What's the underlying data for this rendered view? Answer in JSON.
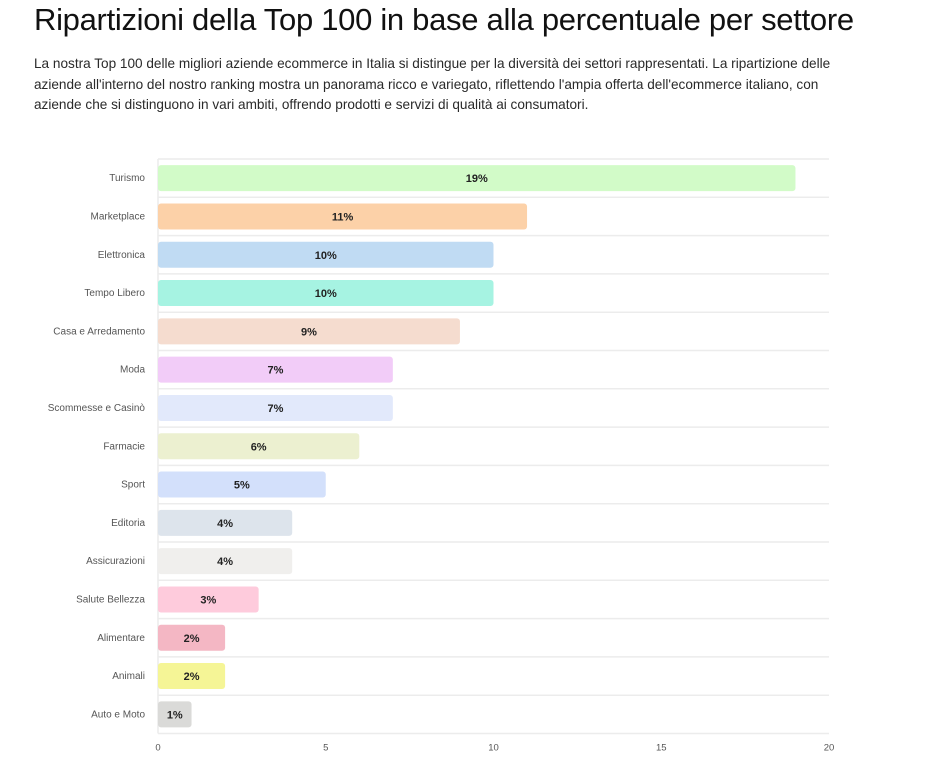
{
  "header": {
    "title": "Ripartizioni della Top 100 in base alla percentuale per settore",
    "description": "La nostra Top 100 delle migliori aziende ecommerce in Italia si distingue per la diversità dei settori rappresentati. La ripartizione delle aziende all'interno del nostro ranking mostra un panorama ricco e variegato, riflettendo l'ampia offerta dell'ecommerce italiano, con aziende che si distinguono in vari ambiti, offrendo prodotti e servizi di qualità ai consumatori."
  },
  "chart_data": {
    "type": "bar",
    "orientation": "horizontal",
    "title": "",
    "xlabel": "",
    "ylabel": "",
    "xlim": [
      0,
      20
    ],
    "xticks": [
      0,
      5,
      10,
      15,
      20
    ],
    "grid": true,
    "categories": [
      "Turismo",
      "Marketplace",
      "Elettronica",
      "Tempo Libero",
      "Casa e Arredamento",
      "Moda",
      "Scommesse e Casinò",
      "Farmacie",
      "Sport",
      "Editoria",
      "Assicurazioni",
      "Salute Bellezza",
      "Alimentare",
      "Animali",
      "Auto e Moto"
    ],
    "values": [
      19,
      11,
      10,
      10,
      9,
      7,
      7,
      6,
      5,
      4,
      4,
      3,
      2,
      2,
      1
    ],
    "labels": [
      "19%",
      "11%",
      "10%",
      "10%",
      "9%",
      "7%",
      "7%",
      "6%",
      "5%",
      "4%",
      "4%",
      "3%",
      "2%",
      "2%",
      "1%"
    ],
    "colors": [
      "#d2fbc8",
      "#fcd1a8",
      "#c0dbf3",
      "#a6f3e2",
      "#f5dccf",
      "#f2ccf8",
      "#e2e9fb",
      "#ecf0d0",
      "#d3e0fb",
      "#dde4ec",
      "#f0efed",
      "#fecbdc",
      "#f4b7c4",
      "#f5f596",
      "#dadad8"
    ]
  }
}
